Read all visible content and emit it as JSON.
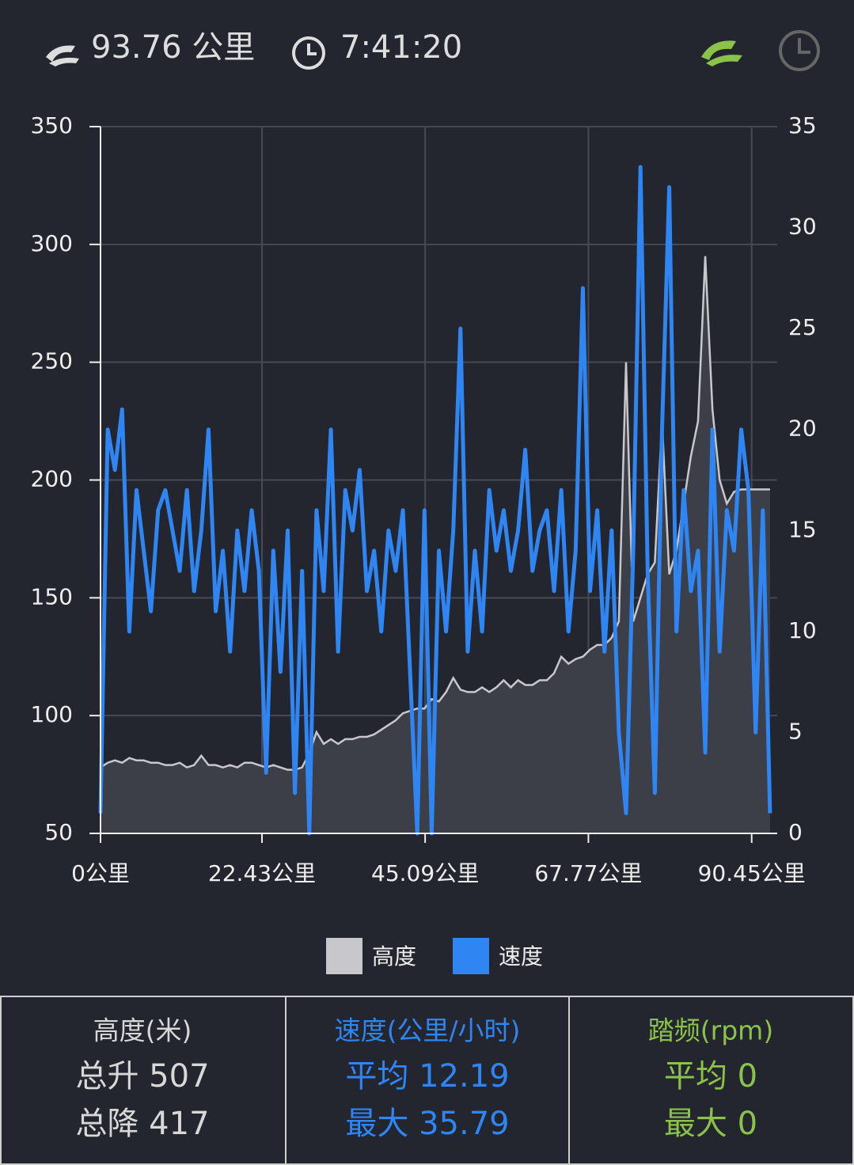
{
  "header": {
    "distance": "93.76 公里",
    "duration": "7:41:20"
  },
  "chart_data": {
    "type": "line",
    "x": [
      0,
      1,
      2,
      3,
      4,
      5,
      6,
      7,
      8,
      9,
      10,
      11,
      12,
      13,
      14,
      15,
      16,
      17,
      18,
      19,
      20,
      21,
      22,
      23,
      24,
      25,
      26,
      27,
      28,
      29,
      30,
      31,
      32,
      33,
      34,
      35,
      36,
      37,
      38,
      39,
      40,
      41,
      42,
      43,
      44,
      45,
      46,
      47,
      48,
      49,
      50,
      51,
      52,
      53,
      54,
      55,
      56,
      57,
      58,
      59,
      60,
      61,
      62,
      63,
      64,
      65,
      66,
      67,
      68,
      69,
      70,
      71,
      72,
      73,
      74,
      75,
      76,
      77,
      78,
      79,
      80,
      81,
      82,
      83,
      84,
      85,
      86,
      87,
      88,
      89,
      90,
      91,
      92,
      93
    ],
    "series": [
      {
        "name": "高度",
        "color": "#c8c8cc",
        "fill": "#3c3e48",
        "kind": "area",
        "values": [
          78,
          80,
          81,
          80,
          82,
          81,
          81,
          80,
          80,
          79,
          79,
          80,
          78,
          79,
          83,
          79,
          79,
          78,
          79,
          78,
          80,
          80,
          79,
          78,
          79,
          78,
          77,
          77,
          78,
          84,
          93,
          88,
          90,
          88,
          90,
          90,
          91,
          91,
          92,
          94,
          96,
          98,
          101,
          102,
          103,
          103,
          107,
          106,
          110,
          116,
          111,
          110,
          110,
          112,
          110,
          112,
          115,
          112,
          115,
          113,
          113,
          115,
          115,
          118,
          125,
          122,
          124,
          125,
          128,
          130,
          130,
          133,
          140,
          250,
          140,
          150,
          160,
          165,
          225,
          160,
          170,
          190,
          210,
          225,
          295,
          230,
          200,
          190,
          195,
          196,
          196,
          196,
          196,
          196
        ]
      },
      {
        "name": "速度",
        "color": "#2f86f2",
        "axis": "y2",
        "kind": "line",
        "values": [
          1,
          20,
          18,
          21,
          10,
          17,
          14,
          11,
          16,
          17,
          15,
          13,
          17,
          12,
          15,
          20,
          11,
          14,
          9,
          15,
          12,
          16,
          13,
          3,
          14,
          8,
          15,
          2,
          13,
          0,
          16,
          12,
          20,
          9,
          17,
          15,
          18,
          12,
          14,
          10,
          15,
          13,
          16,
          8,
          0,
          16,
          0,
          14,
          10,
          15,
          25,
          9,
          14,
          10,
          17,
          14,
          16,
          13,
          15,
          19,
          13,
          15,
          16,
          12,
          17,
          10,
          14,
          27,
          12,
          16,
          9,
          15,
          5,
          1,
          14,
          33,
          13,
          2,
          20,
          32,
          10,
          17,
          12,
          14,
          4,
          20,
          9,
          16,
          14,
          20,
          17,
          5,
          16,
          1
        ]
      }
    ],
    "xlim": [
      0,
      94
    ],
    "xticks": [
      {
        "value": 0,
        "label": "0公里"
      },
      {
        "value": 22.43,
        "label": "22.43公里"
      },
      {
        "value": 45.09,
        "label": "45.09公里"
      },
      {
        "value": 67.77,
        "label": "67.77公里"
      },
      {
        "value": 90.45,
        "label": "90.45公里"
      }
    ],
    "ylim": [
      50,
      350
    ],
    "yticks": [
      50,
      100,
      150,
      200,
      250,
      300,
      350
    ],
    "y2lim": [
      0,
      35
    ],
    "y2ticks": [
      0,
      5,
      10,
      15,
      20,
      25,
      30,
      35
    ],
    "grid": true
  },
  "stats": [
    {
      "title": "高度(米)",
      "color": "#d8d8d8",
      "lines": [
        "总升 507",
        "总降 417"
      ]
    },
    {
      "title": "速度(公里/小时)",
      "color": "#2f86f2",
      "lines": [
        "平均 12.19",
        "最大 35.79"
      ]
    },
    {
      "title": "踏频(rpm)",
      "color": "#8bc34a",
      "lines": [
        "平均 0",
        "最大 0"
      ]
    }
  ]
}
